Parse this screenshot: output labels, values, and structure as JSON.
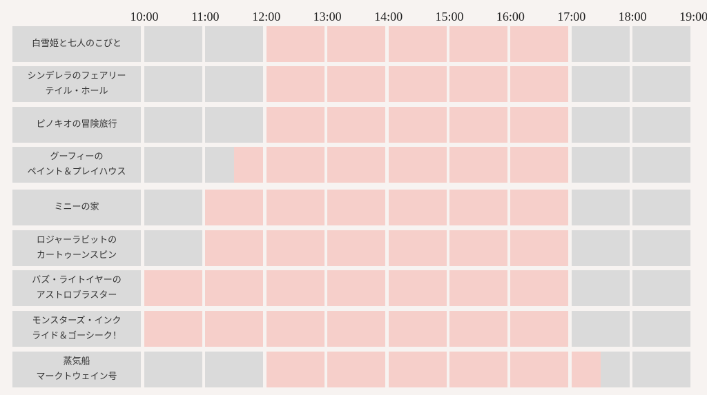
{
  "chart_data": {
    "type": "table",
    "hours": [
      "10:00",
      "11:00",
      "12:00",
      "13:00",
      "14:00",
      "15:00",
      "16:00",
      "17:00",
      "18:00",
      "19:00"
    ],
    "colors": {
      "open": "#f6cfca",
      "closed": "#dadada",
      "background": "#f7f3f1"
    },
    "rows": [
      {
        "label": "白雪姫と七人のこびと",
        "open": [
          12,
          17
        ]
      },
      {
        "label": "シンデレラのフェアリー\nテイル・ホール",
        "open": [
          12,
          17
        ]
      },
      {
        "label": "ピノキオの冒険旅行",
        "open": [
          12,
          17
        ]
      },
      {
        "label": "グーフィーの\nペイント＆プレイハウス",
        "open": [
          11.5,
          17
        ]
      },
      {
        "label": "ミニーの家",
        "open": [
          11,
          17
        ]
      },
      {
        "label": "ロジャーラビットの\nカートゥーンスピン",
        "open": [
          11,
          17
        ]
      },
      {
        "label": "バズ・ライトイヤーの\nアストロブラスター",
        "open": [
          10,
          17
        ]
      },
      {
        "label": "モンスターズ・インク\nライド＆ゴーシーク！",
        "open": [
          10,
          17
        ]
      },
      {
        "label": "蒸気船\nマークトウェイン号",
        "open": [
          12,
          17.5
        ]
      }
    ]
  }
}
